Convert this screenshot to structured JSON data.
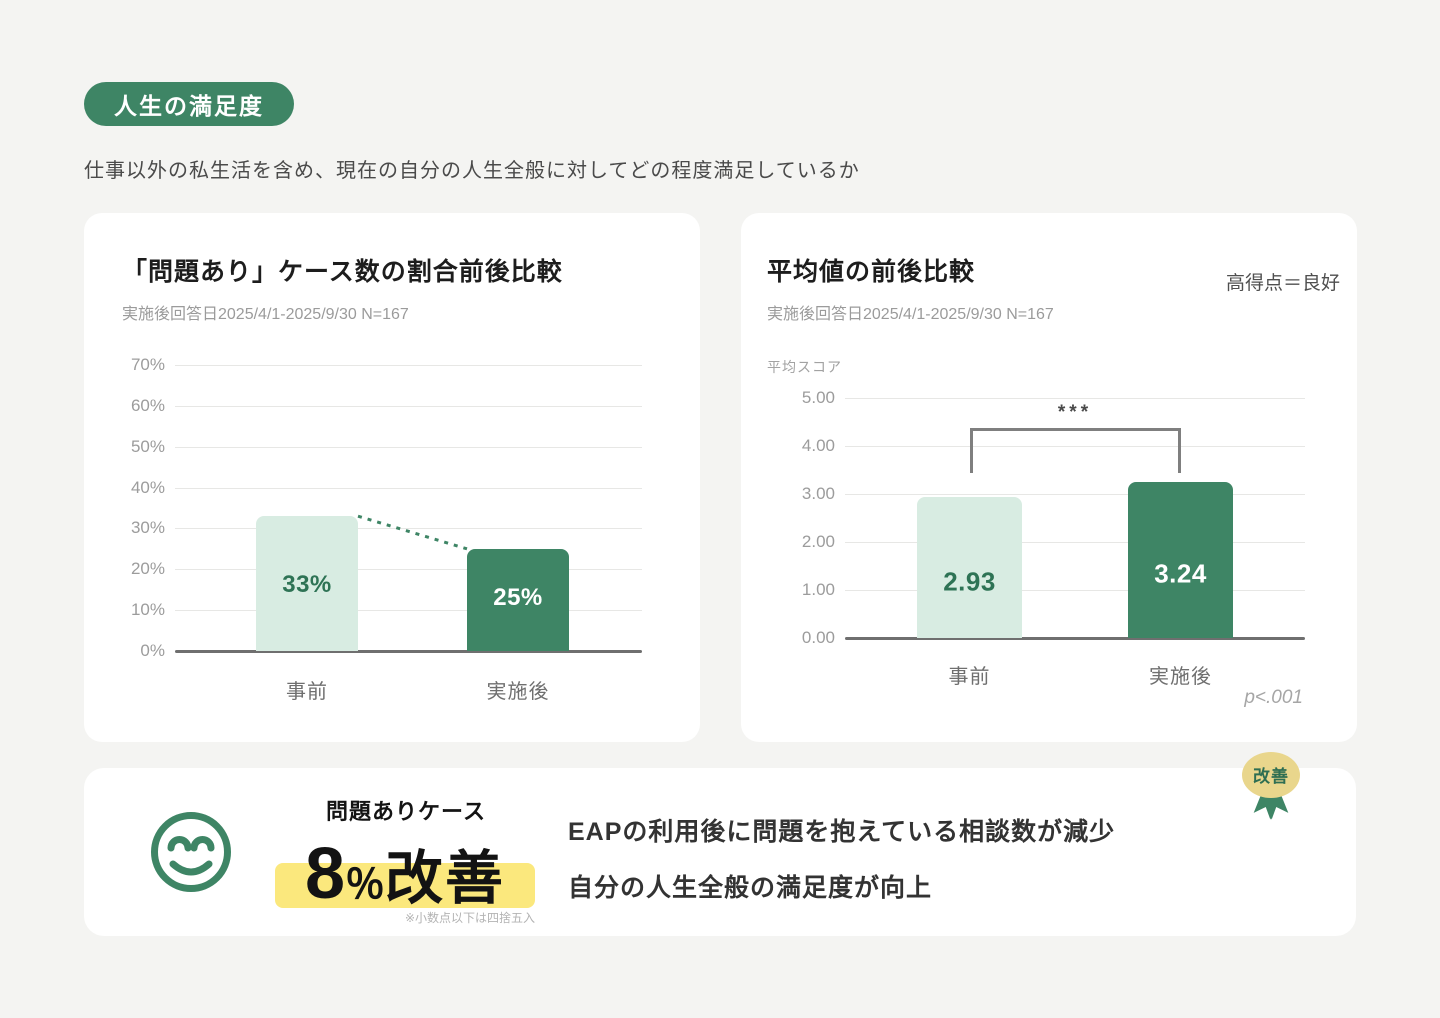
{
  "header": {
    "badge": "人生の満足度",
    "description": "仕事以外の私生活を含め、現在の自分の人生全般に対してどの程度満足しているか"
  },
  "colors": {
    "accent_green": "#3e8565",
    "light_green_bar": "#d8ece2",
    "value_green_text": "#2e7355",
    "highlight_yellow": "#fbe87d",
    "ribbon_tan": "#e9d68c",
    "page_background": "#f4f4f2",
    "grid_gray": "#e7e7e5",
    "bracket_gray": "#7f7f7f"
  },
  "chart_data": [
    {
      "type": "bar",
      "title": "「問題あり」ケース数の割合前後比較",
      "subtitle": "実施後回答日2025/4/1-2025/9/30 N=167",
      "categories": [
        "事前",
        "実施後"
      ],
      "values": [
        33,
        25
      ],
      "value_labels": [
        "33%",
        "25%"
      ],
      "xlabel": "",
      "ylabel": "",
      "ylim": [
        0,
        70
      ],
      "yticks": [
        "70%",
        "60%",
        "50%",
        "40%",
        "30%",
        "20%",
        "10%",
        "0%"
      ],
      "grid": true,
      "legend": "none",
      "connector": "dotted-decline-line",
      "bar_colors": [
        "#d8ece2",
        "#3e8565"
      ],
      "label_colors": [
        "#2e7355",
        "#ffffff"
      ]
    },
    {
      "type": "bar",
      "title": "平均値の前後比較",
      "corner_note": "高得点＝良好",
      "subtitle": "実施後回答日2025/4/1-2025/9/30 N=167",
      "categories": [
        "事前",
        "実施後"
      ],
      "values": [
        2.93,
        3.24
      ],
      "value_labels": [
        "2.93",
        "3.24"
      ],
      "xlabel": "",
      "ylabel": "平均スコア",
      "ylim": [
        0,
        5
      ],
      "yticks": [
        "5.00",
        "4.00",
        "3.00",
        "2.00",
        "1.00",
        "0.00"
      ],
      "grid": true,
      "legend": "none",
      "significance": "***",
      "p_note": "p<.001",
      "bar_colors": [
        "#d8ece2",
        "#3e8565"
      ],
      "label_colors": [
        "#2e7355",
        "#ffffff"
      ]
    }
  ],
  "summary": {
    "ribbon_label": "改善",
    "metric_label": "問題ありケース",
    "value_number": "8",
    "value_unit": "％",
    "value_word": "改善",
    "footnote": "※小数点以下は四捨五入",
    "points": [
      "EAPの利用後に問題を抱えている相談数が減少",
      "自分の人生全般の満足度が向上"
    ]
  }
}
